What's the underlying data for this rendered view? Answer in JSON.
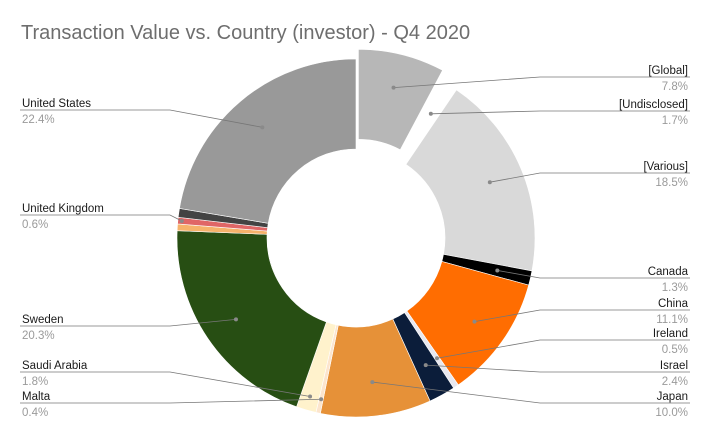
{
  "chart_data": {
    "type": "pie",
    "title": "Transaction Value vs. Country (investor) - Q4 2020",
    "donut": true,
    "slices": [
      {
        "label": "[Global]",
        "value": 7.8,
        "pct_label": "7.8%",
        "color": "#b7b7b7",
        "exploded": true
      },
      {
        "label": "[Undisclosed]",
        "value": 1.7,
        "pct_label": "1.7%",
        "color": "#ffffff"
      },
      {
        "label": "[Various]",
        "value": 18.5,
        "pct_label": "18.5%",
        "color": "#d9d9d9"
      },
      {
        "label": "Canada",
        "value": 1.3,
        "pct_label": "1.3%",
        "color": "#000000"
      },
      {
        "label": "China",
        "value": 11.1,
        "pct_label": "11.1%",
        "color": "#ff6d01"
      },
      {
        "label": "Ireland",
        "value": 0.5,
        "pct_label": "0.5%",
        "color": "#e8e8f0"
      },
      {
        "label": "Israel",
        "value": 2.4,
        "pct_label": "2.4%",
        "color": "#0b1d3a"
      },
      {
        "label": "Japan",
        "value": 10.0,
        "pct_label": "10.0%",
        "color": "#e69138"
      },
      {
        "label": "Malta",
        "value": 0.4,
        "pct_label": "0.4%",
        "color": "#fce5cd"
      },
      {
        "label": "Saudi Arabia",
        "value": 1.8,
        "pct_label": "1.8%",
        "color": "#fff2cc"
      },
      {
        "label": "Sweden",
        "value": 20.3,
        "pct_label": "20.3%",
        "color": "#274e13"
      },
      {
        "label": "United Kingdom",
        "value": 0.6,
        "pct_label": "0.6%",
        "color": "#e06666"
      },
      {
        "label": "United States",
        "value": 22.4,
        "pct_label": "22.4%",
        "color": "#999999"
      }
    ],
    "extra_slices": [
      {
        "value": 0.6,
        "color": "#f6b26b"
      },
      {
        "value": 0.8,
        "color": "#434343"
      }
    ]
  }
}
